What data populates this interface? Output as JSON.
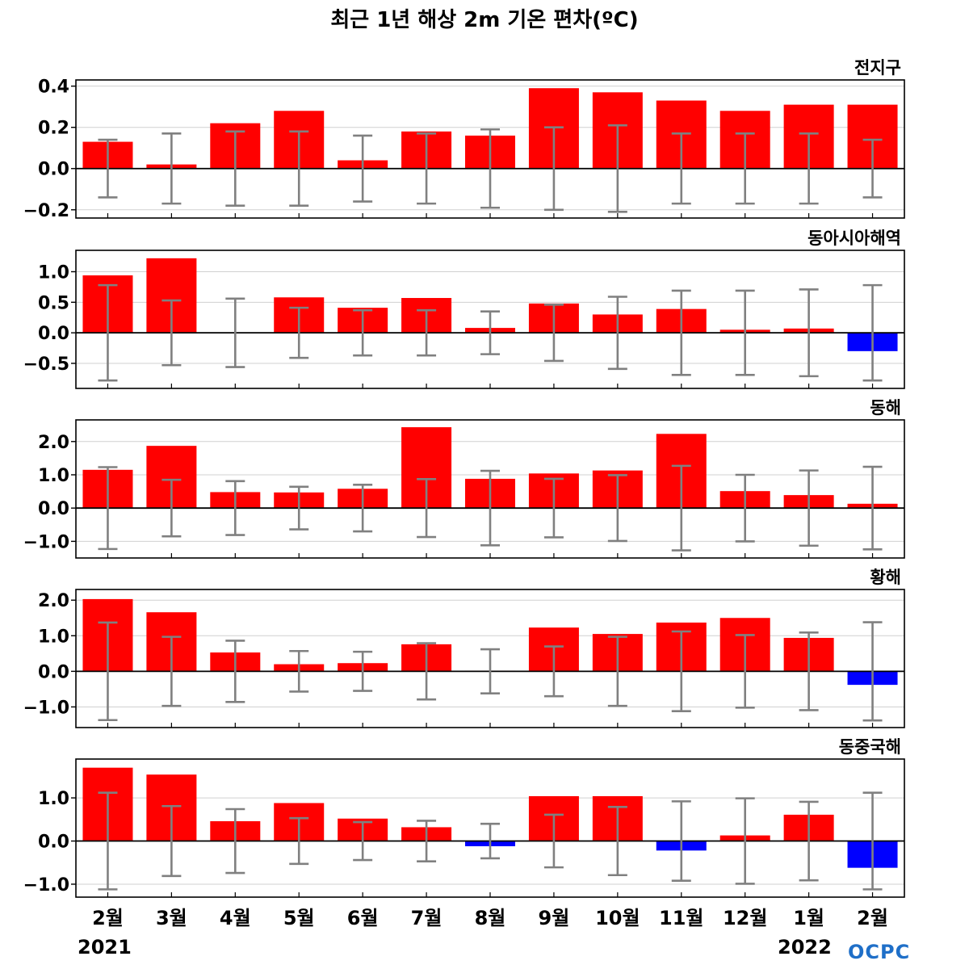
{
  "title": "최근 1년 해상 2m 기온 편차(ºC)",
  "logo": "OCPC",
  "colors": {
    "positive": "#ff0000",
    "negative": "#0000ff",
    "errorbar": "#808080",
    "grid": "#d0d0d0"
  },
  "x_tick_labels": [
    "2월",
    "3월",
    "4월",
    "5월",
    "6월",
    "7월",
    "8월",
    "9월",
    "10월",
    "11월",
    "12월",
    "1월",
    "2월"
  ],
  "year_labels": {
    "start": "2021",
    "end": "2022"
  },
  "chart_data": [
    {
      "type": "bar",
      "title": "전지구",
      "categories": [
        "2월",
        "3월",
        "4월",
        "5월",
        "6월",
        "7월",
        "8월",
        "9월",
        "10월",
        "11월",
        "12월",
        "1월",
        "2월"
      ],
      "values": [
        0.13,
        0.02,
        0.22,
        0.28,
        0.04,
        0.18,
        0.16,
        0.39,
        0.37,
        0.33,
        0.28,
        0.31,
        0.31
      ],
      "error": [
        0.14,
        0.17,
        0.18,
        0.18,
        0.16,
        0.17,
        0.19,
        0.2,
        0.21,
        0.17,
        0.17,
        0.17,
        0.14
      ],
      "ylim": [
        -0.24,
        0.43
      ],
      "yticks": [
        -0.2,
        0.0,
        0.2,
        0.4
      ],
      "ytick_labels": [
        "−0.2",
        "0.0",
        "0.2",
        "0.4"
      ]
    },
    {
      "type": "bar",
      "title": "동아시아해역",
      "categories": [
        "2월",
        "3월",
        "4월",
        "5월",
        "6월",
        "7월",
        "8월",
        "9월",
        "10월",
        "11월",
        "12월",
        "1월",
        "2월"
      ],
      "values": [
        0.94,
        1.22,
        0.0,
        0.58,
        0.41,
        0.57,
        0.08,
        0.48,
        0.3,
        0.39,
        0.05,
        0.07,
        -0.3
      ],
      "error": [
        0.78,
        0.53,
        0.56,
        0.41,
        0.37,
        0.37,
        0.35,
        0.46,
        0.59,
        0.69,
        0.69,
        0.71,
        0.78
      ],
      "ylim": [
        -0.91,
        1.35
      ],
      "yticks": [
        -0.5,
        0.0,
        0.5,
        1.0
      ],
      "ytick_labels": [
        "−0.5",
        "0.0",
        "0.5",
        "1.0"
      ]
    },
    {
      "type": "bar",
      "title": "동해",
      "categories": [
        "2월",
        "3월",
        "4월",
        "5월",
        "6월",
        "7월",
        "8월",
        "9월",
        "10월",
        "11월",
        "12월",
        "1월",
        "2월"
      ],
      "values": [
        1.15,
        1.87,
        0.48,
        0.47,
        0.58,
        2.43,
        0.88,
        1.04,
        1.13,
        2.23,
        0.51,
        0.39,
        0.13
      ],
      "error": [
        1.23,
        0.85,
        0.81,
        0.64,
        0.7,
        0.87,
        1.12,
        0.88,
        0.99,
        1.27,
        1.0,
        1.13,
        1.24
      ],
      "ylim": [
        -1.5,
        2.65
      ],
      "yticks": [
        -1.0,
        0.0,
        1.0,
        2.0
      ],
      "ytick_labels": [
        "−1.0",
        "0.0",
        "1.0",
        "2.0"
      ]
    },
    {
      "type": "bar",
      "title": "황해",
      "categories": [
        "2월",
        "3월",
        "4월",
        "5월",
        "6월",
        "7월",
        "8월",
        "9월",
        "10월",
        "11월",
        "12월",
        "1월",
        "2월"
      ],
      "values": [
        2.03,
        1.66,
        0.53,
        0.2,
        0.23,
        0.76,
        0.02,
        1.23,
        1.05,
        1.37,
        1.5,
        0.94,
        -0.38
      ],
      "error": [
        1.37,
        0.97,
        0.86,
        0.57,
        0.55,
        0.79,
        0.62,
        0.7,
        0.97,
        1.12,
        1.02,
        1.09,
        1.38
      ],
      "ylim": [
        -1.58,
        2.3
      ],
      "yticks": [
        -1.0,
        0.0,
        1.0,
        2.0
      ],
      "ytick_labels": [
        "−1.0",
        "0.0",
        "1.0",
        "2.0"
      ]
    },
    {
      "type": "bar",
      "title": "동중국해",
      "categories": [
        "2월",
        "3월",
        "4월",
        "5월",
        "6월",
        "7월",
        "8월",
        "9월",
        "10월",
        "11월",
        "12월",
        "1월",
        "2월"
      ],
      "values": [
        1.7,
        1.54,
        0.46,
        0.88,
        0.52,
        0.32,
        -0.12,
        1.04,
        1.04,
        -0.22,
        0.13,
        0.61,
        -0.62
      ],
      "error": [
        1.12,
        0.81,
        0.74,
        0.53,
        0.44,
        0.47,
        0.4,
        0.61,
        0.79,
        0.92,
        0.99,
        0.91,
        1.12
      ],
      "ylim": [
        -1.3,
        1.9
      ],
      "yticks": [
        -1.0,
        0.0,
        1.0
      ],
      "ytick_labels": [
        "−1.0",
        "0.0",
        "1.0"
      ]
    }
  ]
}
